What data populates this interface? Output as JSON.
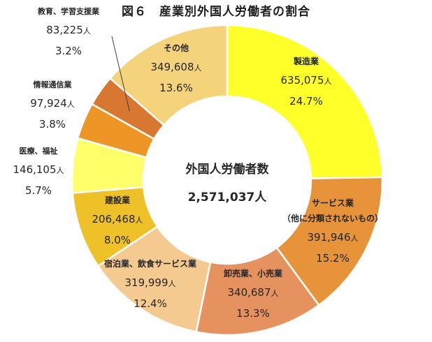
{
  "title": "図６　産業別外国人労働者の割合",
  "center": {
    "label": "外国人労働者数",
    "total": "2,571,037人"
  },
  "colors": {
    "edge": "#a8a8a8",
    "leader_line": "#404040",
    "text": "#262626"
  },
  "chart_data": {
    "type": "pie",
    "variant": "donut",
    "title": "図６　産業別外国人労働者の割合",
    "start_angle_deg": 0,
    "direction": "clockwise",
    "slices": [
      {
        "name": "製造業",
        "label_lines": [
          "製造業"
        ],
        "value": 635075,
        "value_text": "635,075",
        "unit": "人",
        "percent": 24.7,
        "percent_text": "24.7%",
        "color": "#ffff29"
      },
      {
        "name": "サービス業（他に分類されないもの）",
        "label_lines": [
          "サービス業",
          "（他に分類されないもの）"
        ],
        "value": 391946,
        "value_text": "391,946",
        "unit": "人",
        "percent": 15.2,
        "percent_text": "15.2%",
        "color": "#e6933a"
      },
      {
        "name": "卸売業、小売業",
        "label_lines": [
          "卸売業、小売業"
        ],
        "value": 340687,
        "value_text": "340,687",
        "unit": "人",
        "percent": 13.3,
        "percent_text": "13.3%",
        "color": "#e5925f"
      },
      {
        "name": "宿泊業、飲食サービス業",
        "label_lines": [
          "宿泊業、飲食サービス業"
        ],
        "value": 319999,
        "value_text": "319,999",
        "unit": "人",
        "percent": 12.4,
        "percent_text": "12.4%",
        "color": "#f5ca91"
      },
      {
        "name": "建設業",
        "label_lines": [
          "建設業"
        ],
        "value": 206468,
        "value_text": "206,468",
        "unit": "人",
        "percent": 8.0,
        "percent_text": "8.0%",
        "color": "#eec129"
      },
      {
        "name": "医療、福祉",
        "label_lines": [
          "医療、福祉"
        ],
        "value": 146105,
        "value_text": "146,105",
        "unit": "人",
        "percent": 5.7,
        "percent_text": "5.7%",
        "color": "#ffff6a"
      },
      {
        "name": "情報通信業",
        "label_lines": [
          "情報通信業"
        ],
        "value": 97924,
        "value_text": "97,924",
        "unit": "人",
        "percent": 3.8,
        "percent_text": "3.8%",
        "color": "#ed9626"
      },
      {
        "name": "教育、学習支援業",
        "label_lines": [
          "教育、学習支援業"
        ],
        "value": 83225,
        "value_text": "83,225",
        "unit": "人",
        "percent": 3.2,
        "percent_text": "3.2%",
        "color": "#d77730"
      },
      {
        "name": "その他",
        "label_lines": [
          "その他"
        ],
        "value": 349608,
        "value_text": "349,608",
        "unit": "人",
        "percent": 13.6,
        "percent_text": "13.6%",
        "color": "#f4d37a"
      }
    ]
  }
}
